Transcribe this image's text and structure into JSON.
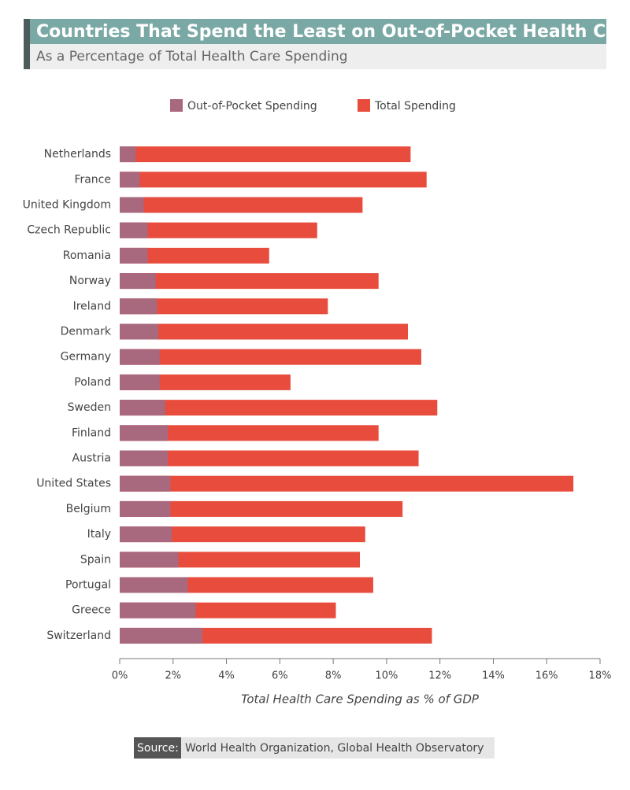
{
  "chart_data": {
    "type": "bar",
    "orientation": "horizontal",
    "overlap": true,
    "title": "Countries That Spend the Least on Out-of-Pocket Health Care",
    "subtitle": "As a Percentage of Total Health Care Spending",
    "categories": [
      "Netherlands",
      "France",
      "United Kingdom",
      "Czech Republic",
      "Romania",
      "Norway",
      "Ireland",
      "Denmark",
      "Germany",
      "Poland",
      "Sweden",
      "Finland",
      "Austria",
      "United States",
      "Belgium",
      "Italy",
      "Spain",
      "Portugal",
      "Greece",
      "Switzerland"
    ],
    "series": [
      {
        "name": "Out-of-Pocket Spending",
        "color": "#a8687e",
        "values": [
          0.6,
          0.75,
          0.9,
          1.05,
          1.05,
          1.35,
          1.4,
          1.45,
          1.5,
          1.5,
          1.7,
          1.8,
          1.8,
          1.9,
          1.9,
          1.95,
          2.2,
          2.55,
          2.85,
          3.1
        ]
      },
      {
        "name": "Total Spending",
        "color": "#e84c3d",
        "values": [
          10.9,
          11.5,
          9.1,
          7.4,
          5.6,
          9.7,
          7.8,
          10.8,
          11.3,
          6.4,
          11.9,
          9.7,
          11.2,
          17.0,
          10.6,
          9.2,
          9.0,
          9.5,
          8.1,
          11.7
        ]
      }
    ],
    "xlim": [
      0,
      18
    ],
    "xticks": [
      {
        "value": 0,
        "label": "0%"
      },
      {
        "value": 2,
        "label": "2%"
      },
      {
        "value": 4,
        "label": "4%"
      },
      {
        "value": 6,
        "label": "6%"
      },
      {
        "value": 8,
        "label": "8%"
      },
      {
        "value": 10,
        "label": "10%"
      },
      {
        "value": 12,
        "label": "12%"
      },
      {
        "value": 14,
        "label": "14%"
      },
      {
        "value": 16,
        "label": "16%"
      },
      {
        "value": 18,
        "label": "18%"
      }
    ],
    "x_label": "Total Health Care Spending as % of GDP",
    "source_label": "Source:",
    "source": "World Health Organization, Global Health Observatory",
    "legend": "top"
  }
}
